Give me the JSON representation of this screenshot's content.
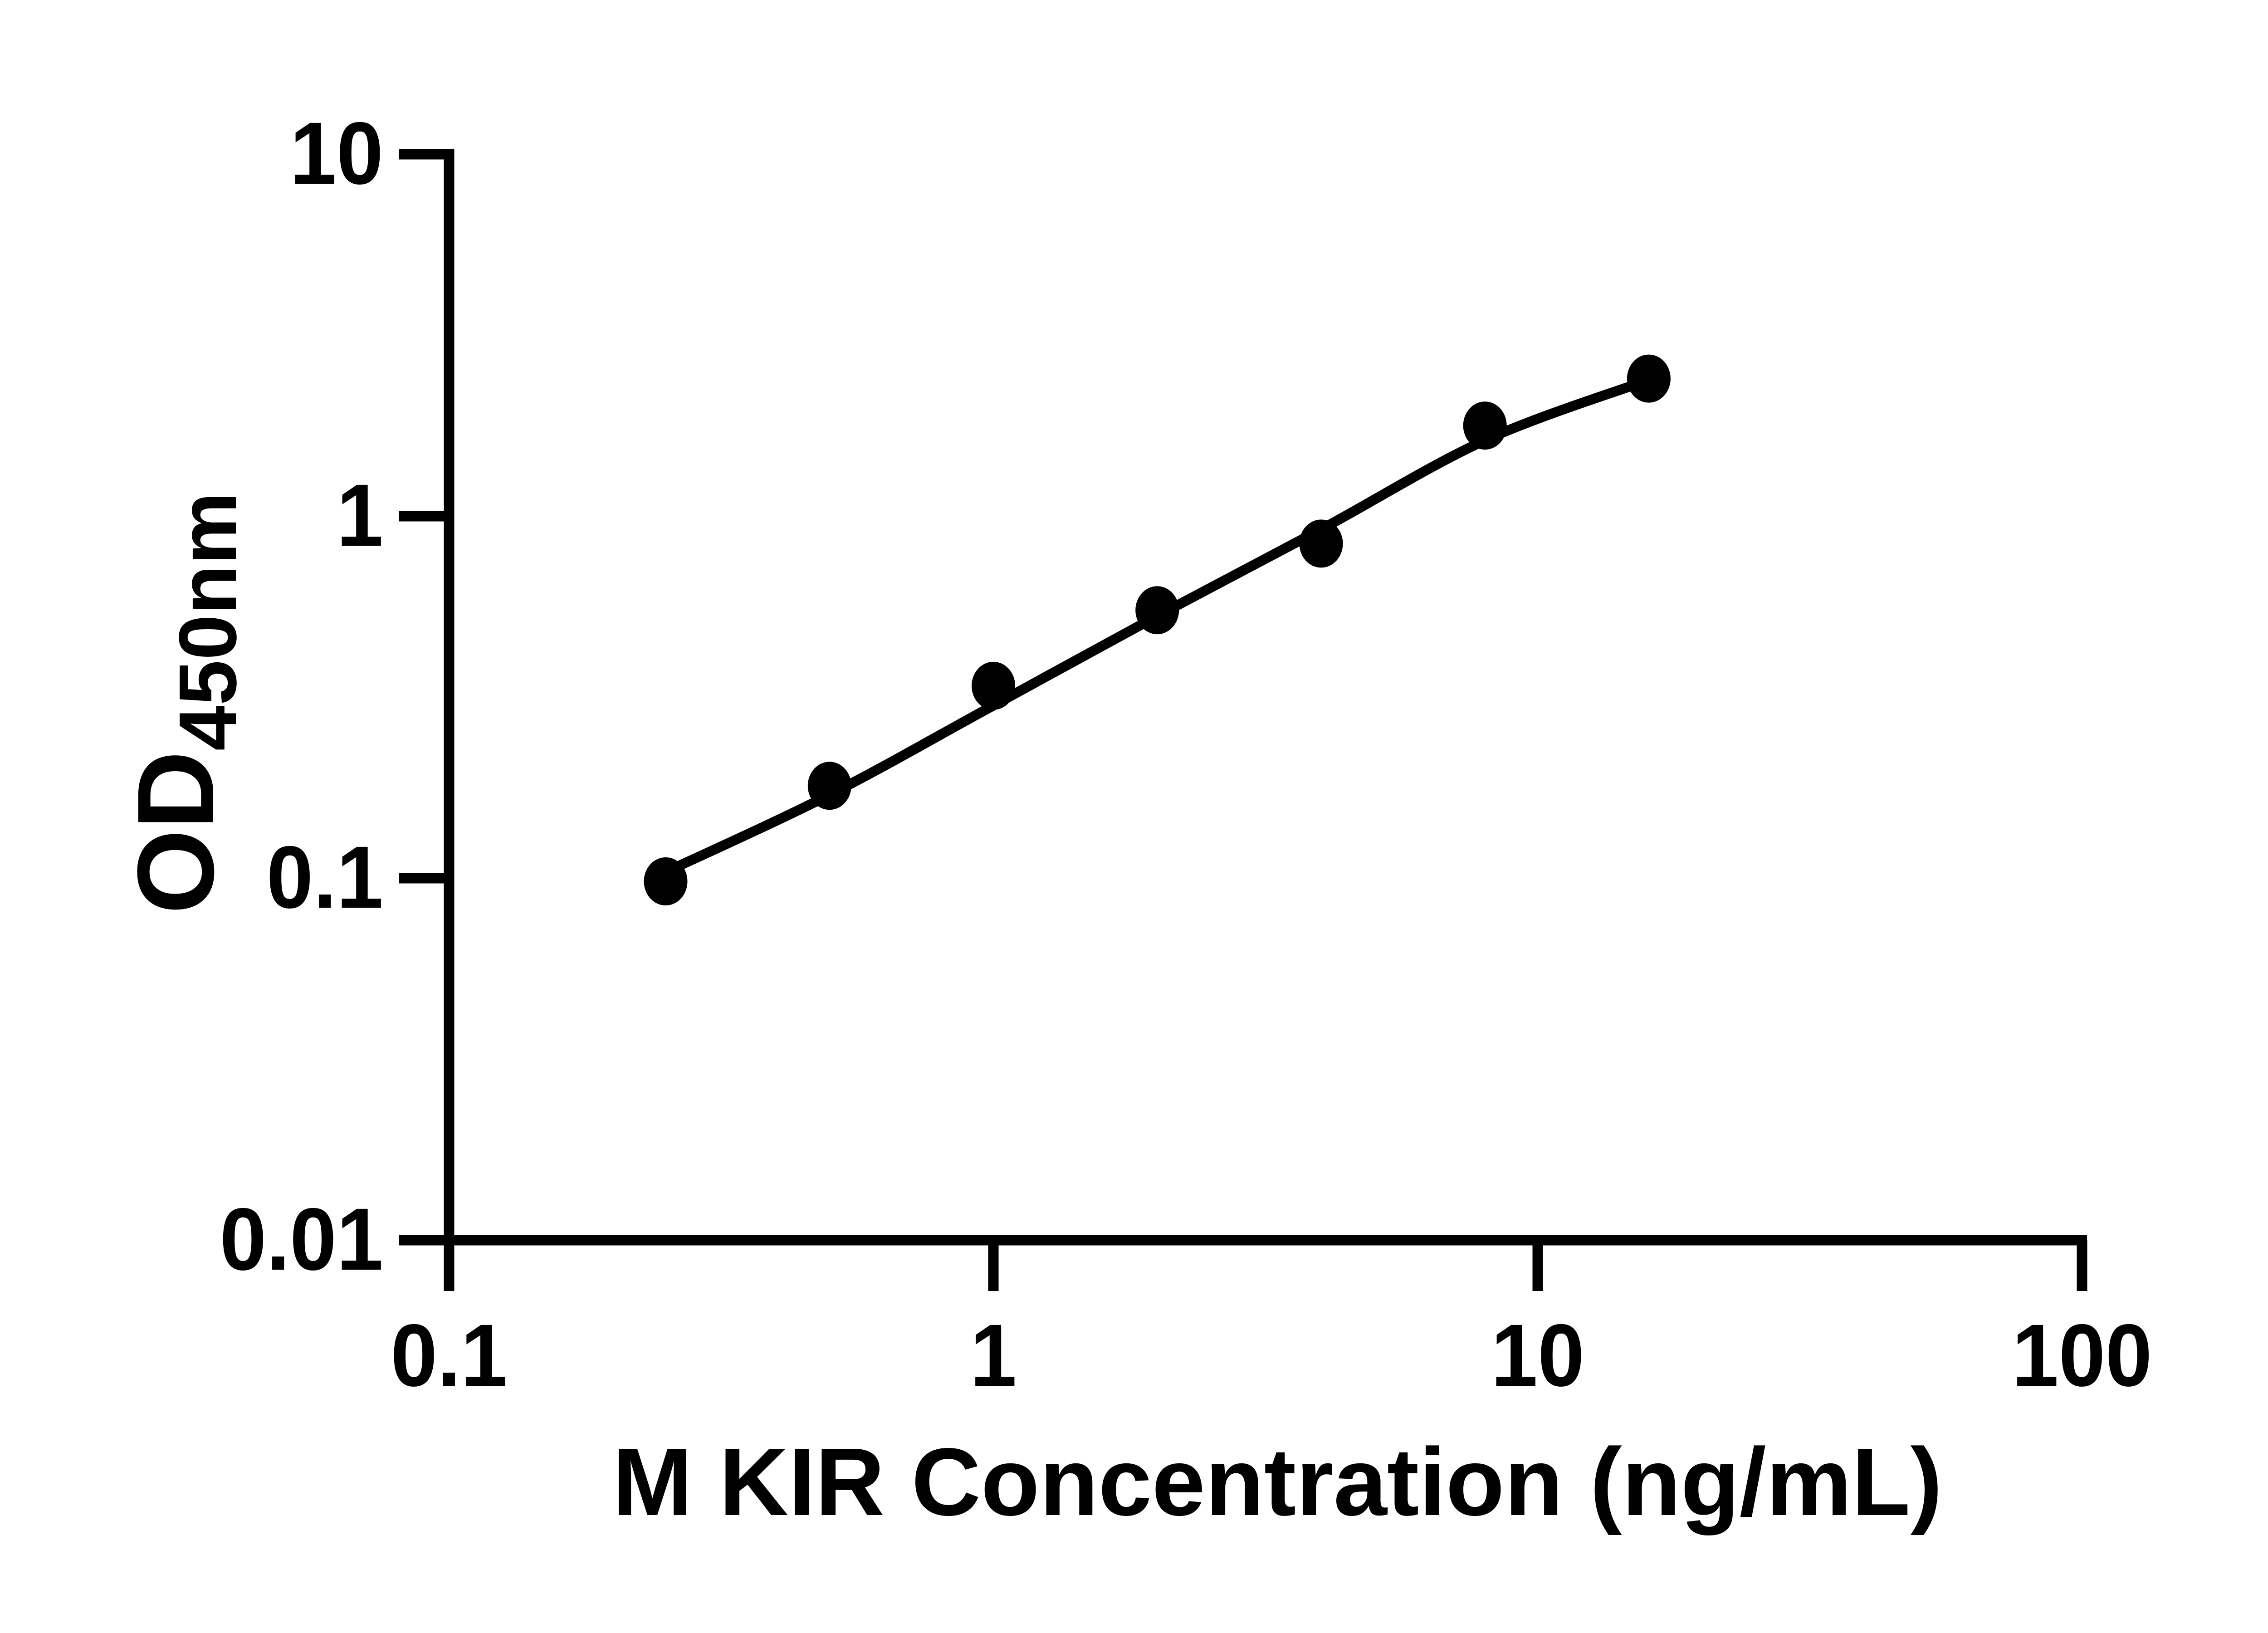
{
  "chart_data": {
    "type": "scatter",
    "title": "",
    "xlabel": "M KIR Concentration (ng/mL)",
    "ylabel_main": "OD",
    "ylabel_sub": "450nm",
    "x_scale": "log",
    "y_scale": "log",
    "xlim": [
      0.1,
      100
    ],
    "ylim": [
      0.01,
      10
    ],
    "grid": false,
    "legend": null,
    "points": {
      "x": [
        0.25,
        0.5,
        1,
        2,
        4,
        8,
        16
      ],
      "y": [
        0.098,
        0.18,
        0.34,
        0.55,
        0.84,
        1.78,
        2.4
      ]
    },
    "fit_curve": {
      "x": [
        0.25,
        0.5,
        1,
        2,
        4,
        8,
        16
      ],
      "y": [
        0.104,
        0.17,
        0.3,
        0.53,
        0.92,
        1.62,
        2.38
      ]
    },
    "x_ticks": {
      "values": [
        0.1,
        1,
        10,
        100
      ],
      "labels": [
        "0.1",
        "1",
        "10",
        "100"
      ]
    },
    "y_ticks": {
      "values": [
        10,
        1,
        0.1,
        0.01
      ],
      "labels": [
        "10",
        "1",
        "0.1",
        "0.01"
      ]
    },
    "marker_color": "#000000",
    "line_color": "#000000",
    "axis_color": "#000000",
    "background": "#ffffff"
  }
}
